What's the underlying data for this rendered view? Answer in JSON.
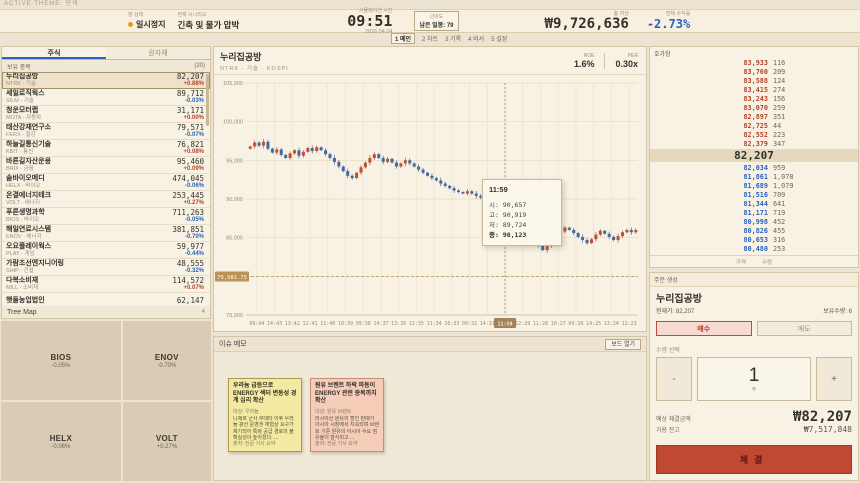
{
  "top": {
    "theme": "ACTIVE THEME: 단색",
    "market_status_label": "장 상태",
    "market_status": "일시정지",
    "scenario_label": "현재 시나리오",
    "scenario": "긴축 및 물가 압박",
    "sim_time_label": "시뮬레이션 시간",
    "time": "09:51",
    "date": "2026.04.04",
    "difficulty_label": "난이도",
    "days_left": "남은 일봉: 79",
    "total_asset_label": "총 자산",
    "total_asset": "₩9,726,636",
    "return_label": "전체 수익률",
    "return_value": "-2.73%",
    "hotkeys": [
      {
        "key": "1",
        "label": "메인",
        "active": true
      },
      {
        "key": "2",
        "label": "차트",
        "active": false
      },
      {
        "key": "3",
        "label": "기록",
        "active": false
      },
      {
        "key": "4",
        "label": "비서",
        "active": false
      },
      {
        "key": "5",
        "label": "설정",
        "active": false
      }
    ]
  },
  "watchlist": {
    "tab_stock": "주식",
    "tab_commodity": "원자재",
    "header": "보유 종목",
    "count": "(20)",
    "items": [
      {
        "name": "누리집공방",
        "ticker": "NTRX - 기술",
        "price": "82,207",
        "change": "+0.88%",
        "dir": "up",
        "selected": true
      },
      {
        "name": "세일로직웍스",
        "ticker": "SILM - 기술",
        "price": "89,712",
        "change": "-0.03%",
        "dir": "down",
        "selected": false
      },
      {
        "name": "청운모터랩",
        "ticker": "MOTA - 자동차",
        "price": "31,171",
        "change": "+0.00%",
        "dir": "up",
        "selected": false
      },
      {
        "name": "태산강재연구소",
        "ticker": "FERX - 철강",
        "price": "79,571",
        "change": "-0.07%",
        "dir": "down",
        "selected": false
      },
      {
        "name": "하늘길통신기술",
        "ticker": "KBIT - 통신",
        "price": "76,821",
        "change": "+0.08%",
        "dir": "up",
        "selected": false
      },
      {
        "name": "바른길자산운용",
        "ticker": "BRIX - 금융",
        "price": "95,460",
        "change": "+0.09%",
        "dir": "up",
        "selected": false
      },
      {
        "name": "솔바이오메디",
        "ticker": "HELX - 바이오",
        "price": "474,045",
        "change": "-0.06%",
        "dir": "down",
        "selected": false
      },
      {
        "name": "온결에너지테크",
        "ticker": "VOLT - 에너지",
        "price": "253,445",
        "change": "+0.27%",
        "dir": "up",
        "selected": false
      },
      {
        "name": "푸른생명과학",
        "ticker": "BIOS - 바이오",
        "price": "711,263",
        "change": "-0.05%",
        "dir": "down",
        "selected": false
      },
      {
        "name": "해일연료시스템",
        "ticker": "ENOV - 에너지",
        "price": "381,851",
        "change": "-0.70%",
        "dir": "down",
        "selected": false
      },
      {
        "name": "오요플레이웍스",
        "ticker": "PLAY - 게임",
        "price": "59,977",
        "change": "-0.44%",
        "dir": "down",
        "selected": false
      },
      {
        "name": "가람조선엔지니어링",
        "ticker": "SHIP - 건설",
        "price": "48,555",
        "change": "-0.32%",
        "dir": "down",
        "selected": false
      },
      {
        "name": "다복소비재",
        "ticker": "MILL - 소비재",
        "price": "114,572",
        "change": "+0.07%",
        "dir": "up",
        "selected": false
      },
      {
        "name": "햇들농업법인",
        "ticker": "",
        "price": "62,147",
        "change": "",
        "dir": "",
        "selected": false
      }
    ]
  },
  "treemap": {
    "title": "Tree Map",
    "count": "4",
    "cells": [
      {
        "ticker": "BIOS",
        "pct": "-0.05%"
      },
      {
        "ticker": "ENOV",
        "pct": "-0.70%"
      },
      {
        "ticker": "HELX",
        "pct": "-0.06%"
      },
      {
        "ticker": "VOLT",
        "pct": "+0.27%"
      }
    ]
  },
  "chart_data": {
    "type": "candlestick",
    "title": "누리집공방",
    "subtitle": "NTRX - 기술 - KOSPI",
    "roe_label": "ROE",
    "roe": "1.6%",
    "per_label": "PER",
    "per": "0.30x",
    "y_min": 75000,
    "y_max": 105000,
    "y_tick_values": [
      105000,
      100000,
      95000,
      90000,
      85000,
      75000
    ],
    "y_tick_labels": [
      "105,000",
      "100,000",
      "95,000",
      "90,000",
      "85,000",
      "75,000"
    ],
    "grid_values": [
      105000,
      100000,
      95000,
      90000,
      85000,
      80000,
      75000
    ],
    "avg_price": 79981.75,
    "avg_price_label": "79,981.75",
    "x_labels": [
      "09:44",
      "14:43",
      "13:42",
      "12:41",
      "11:40",
      "10:39",
      "09:38",
      "14:37",
      "13:36",
      "12:35",
      "11:34",
      "10:33",
      "09:32",
      "14:31",
      "11:59",
      "12:29",
      "11:28",
      "10:27",
      "09:26",
      "14:25",
      "13:24",
      "12:23"
    ],
    "highlight_index": 14,
    "open_first": 96500,
    "closes": [
      96800,
      97300,
      96900,
      97400,
      96500,
      96000,
      96400,
      95700,
      95300,
      95900,
      96300,
      95600,
      96100,
      96600,
      96200,
      96700,
      96300,
      95800,
      95300,
      94800,
      94200,
      93600,
      93000,
      92700,
      93400,
      94100,
      94700,
      95300,
      95800,
      95300,
      94800,
      95200,
      94700,
      94200,
      94600,
      95000,
      94600,
      94200,
      93800,
      93400,
      93000,
      92700,
      92400,
      92000,
      91700,
      91400,
      91100,
      90900,
      90700,
      91000,
      90700,
      90400,
      90200,
      90500,
      90657,
      90123,
      89600,
      89100,
      88500,
      87900,
      87300,
      86700,
      86100,
      85400,
      84700,
      84000,
      83400,
      83900,
      84600,
      85200,
      85800,
      86300,
      86000,
      85600,
      85100,
      84700,
      84300,
      84800,
      85400,
      85900,
      85500,
      85100,
      84700,
      85200,
      85700,
      86000,
      85700,
      86000
    ],
    "tooltip": {
      "time": "11:59",
      "index": 55,
      "open": 90657,
      "high": 90919,
      "low": 89724,
      "close": 90123,
      "rows": [
        "시: 90,657",
        "고: 90,919",
        "저: 89,724",
        "종: 90,123"
      ]
    },
    "up_color": "#bf4f38",
    "down_color": "#44699f"
  },
  "memo": {
    "title": "이슈 메모",
    "open_button": "보드 열기",
    "notes": [
      {
        "color": "yellow",
        "title": "우라늄 급등으로 ENERGY 섹터 변동성 경계 심리 확산",
        "tag": "대상: 우라늄",
        "body": "니제르 군사 쿠데타 이후 우라늄 광산 운영권 재협상 요구가 제기되어 특정 공급 경로의 불확실성이 높아졌다. ...",
        "source": "출처: 전문 기사 요약"
      },
      {
        "color": "pink",
        "title": "원유 브렌트 하락 파동이 ENERGY 관련 종목까지 확산",
        "tag": "대상: 원유 브렌트",
        "body": "러시아산 원유의 할인 판매가 아시아 시장에서 지속되며 브렌트 기준 원유의 아시아 수요 점유율이 잠식되고 ...",
        "source": "출처: 전문 기사 요약"
      }
    ]
  },
  "orderbook": {
    "title": "호가창",
    "asks": [
      {
        "price": "83,933",
        "qty": "116"
      },
      {
        "price": "83,760",
        "qty": "209"
      },
      {
        "price": "83,588",
        "qty": "124"
      },
      {
        "price": "83,415",
        "qty": "274"
      },
      {
        "price": "83,243",
        "qty": "156"
      },
      {
        "price": "83,070",
        "qty": "259"
      },
      {
        "price": "82,897",
        "qty": "351"
      },
      {
        "price": "82,725",
        "qty": "44"
      },
      {
        "price": "82,552",
        "qty": "223"
      },
      {
        "price": "82,379",
        "qty": "347"
      }
    ],
    "current": "82,207",
    "bids": [
      {
        "price": "82,034",
        "qty": "959"
      },
      {
        "price": "81,861",
        "qty": "1,078"
      },
      {
        "price": "81,689",
        "qty": "1,079"
      },
      {
        "price": "81,516",
        "qty": "709"
      },
      {
        "price": "81,344",
        "qty": "641"
      },
      {
        "price": "81,171",
        "qty": "719"
      },
      {
        "price": "80,998",
        "qty": "452"
      },
      {
        "price": "80,826",
        "qty": "455"
      },
      {
        "price": "80,653",
        "qty": "316"
      },
      {
        "price": "80,480",
        "qty": "253"
      }
    ],
    "price_label": "가격",
    "qty_label": "수량"
  },
  "order": {
    "header": "주문 생성",
    "stock": "누리집공방",
    "current_label": "현재가: 82,207",
    "holding_label": "보유수량: 6",
    "buy_label": "매수",
    "sell_label": "매도",
    "qty_label": "수량 선택",
    "minus": "-",
    "qty": "1",
    "unit": "주",
    "plus": "+",
    "est_label": "예상 체결금액",
    "est_value": "₩82,207",
    "cash_label": "가용 잔고",
    "cash_value": "₩7,517,848",
    "submit_label": "체결"
  }
}
